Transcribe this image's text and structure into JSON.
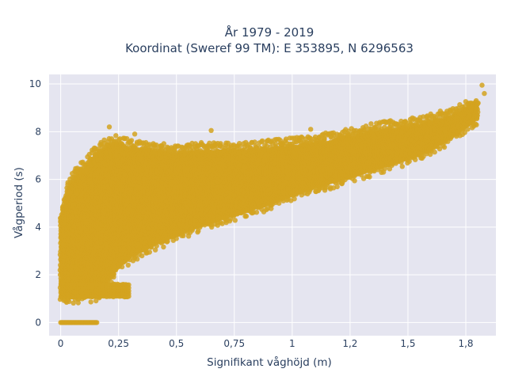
{
  "chart_data": {
    "type": "scatter",
    "title_line1": "År 1979 - 2019",
    "title_line2": "Koordinat (Sweref 99 TM): E 353895, N 6296563",
    "xlabel": "Signifikant våghöjd (m)",
    "ylabel": "Vågperiod (s)",
    "xlim": [
      -0.05,
      1.88
    ],
    "ylim": [
      -0.55,
      10.4
    ],
    "x_ticks": [
      {
        "value": 0,
        "label": "0"
      },
      {
        "value": 0.25,
        "label": "0,25"
      },
      {
        "value": 0.5,
        "label": "0,5"
      },
      {
        "value": 0.75,
        "label": "0,75"
      },
      {
        "value": 1,
        "label": "1"
      },
      {
        "value": 1.25,
        "label": "1,2"
      },
      {
        "value": 1.5,
        "label": "1,5"
      },
      {
        "value": 1.75,
        "label": "1,8"
      }
    ],
    "y_ticks": [
      {
        "value": 0,
        "label": "0"
      },
      {
        "value": 2,
        "label": "2"
      },
      {
        "value": 4,
        "label": "4"
      },
      {
        "value": 6,
        "label": "6"
      },
      {
        "value": 8,
        "label": "8"
      },
      {
        "value": 10,
        "label": "10"
      }
    ],
    "grid": true,
    "marker_color": "#d4a320",
    "plot_background": "#e5e5f0",
    "envelope": [
      {
        "x": 0.0,
        "y_min": 1.1,
        "y_max": 4.4
      },
      {
        "x": 0.03,
        "y_min": 1.1,
        "y_max": 5.6
      },
      {
        "x": 0.06,
        "y_min": 1.1,
        "y_max": 6.1
      },
      {
        "x": 0.1,
        "y_min": 1.1,
        "y_max": 6.5
      },
      {
        "x": 0.15,
        "y_min": 1.15,
        "y_max": 7.0
      },
      {
        "x": 0.2,
        "y_min": 1.7,
        "y_max": 7.4
      },
      {
        "x": 0.25,
        "y_min": 2.4,
        "y_max": 7.5
      },
      {
        "x": 0.3,
        "y_min": 2.8,
        "y_max": 7.3
      },
      {
        "x": 0.4,
        "y_min": 3.3,
        "y_max": 7.2
      },
      {
        "x": 0.5,
        "y_min": 3.7,
        "y_max": 7.1
      },
      {
        "x": 0.6,
        "y_min": 4.1,
        "y_max": 7.2
      },
      {
        "x": 0.7,
        "y_min": 4.4,
        "y_max": 7.2
      },
      {
        "x": 0.8,
        "y_min": 4.7,
        "y_max": 7.2
      },
      {
        "x": 0.9,
        "y_min": 5.0,
        "y_max": 7.3
      },
      {
        "x": 1.0,
        "y_min": 5.4,
        "y_max": 7.4
      },
      {
        "x": 1.1,
        "y_min": 5.7,
        "y_max": 7.5
      },
      {
        "x": 1.2,
        "y_min": 6.0,
        "y_max": 7.7
      },
      {
        "x": 1.3,
        "y_min": 6.3,
        "y_max": 7.9
      },
      {
        "x": 1.4,
        "y_min": 6.6,
        "y_max": 8.1
      },
      {
        "x": 1.5,
        "y_min": 6.9,
        "y_max": 8.2
      },
      {
        "x": 1.6,
        "y_min": 7.3,
        "y_max": 8.4
      },
      {
        "x": 1.7,
        "y_min": 7.9,
        "y_max": 8.7
      },
      {
        "x": 1.8,
        "y_min": 8.6,
        "y_max": 9.2
      }
    ],
    "zero_period_band": {
      "x_min": 0.0,
      "x_max": 0.16,
      "y": 0
    },
    "bottom_spur": {
      "x_min": 0.03,
      "x_max": 0.3,
      "y_min": 1.1,
      "y_max": 1.7
    },
    "outliers": [
      {
        "x": 0.21,
        "y": 8.2
      },
      {
        "x": 0.32,
        "y": 7.9
      },
      {
        "x": 0.65,
        "y": 8.05
      },
      {
        "x": 1.08,
        "y": 8.1
      },
      {
        "x": 0.15,
        "y": 7.3
      },
      {
        "x": 0.95,
        "y": 7.5
      },
      {
        "x": 1.45,
        "y": 8.3
      },
      {
        "x": 1.52,
        "y": 8.5
      },
      {
        "x": 1.82,
        "y": 9.95
      },
      {
        "x": 1.83,
        "y": 9.6
      },
      {
        "x": 0.4,
        "y": 7.5
      },
      {
        "x": 0.62,
        "y": 7.4
      }
    ]
  }
}
